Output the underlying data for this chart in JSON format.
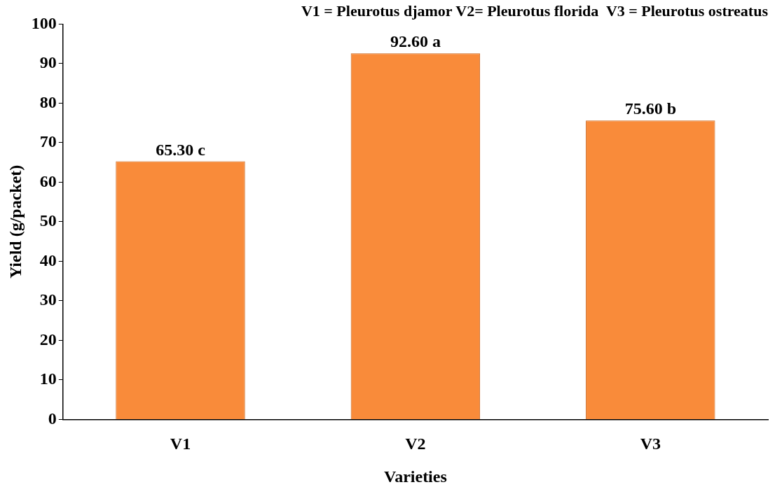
{
  "chart_data": {
    "type": "bar",
    "title": "V1 = Pleurotus djamor V2= Pleurotus florida  V3 = Pleurotus ostreatus",
    "xlabel": "Varieties",
    "ylabel": "Yield (g/packet)",
    "categories": [
      "V1",
      "V2",
      "V3"
    ],
    "values": [
      65.3,
      92.6,
      75.6
    ],
    "color": "#f98b3a",
    "value_labels": [
      "65.30 c",
      "92.60 a",
      "75.60 b"
    ],
    "ylim": [
      0,
      100
    ],
    "yticks": [
      0,
      10,
      20,
      30,
      40,
      50,
      60,
      70,
      80,
      90,
      100
    ],
    "grid": false,
    "legend": false
  }
}
